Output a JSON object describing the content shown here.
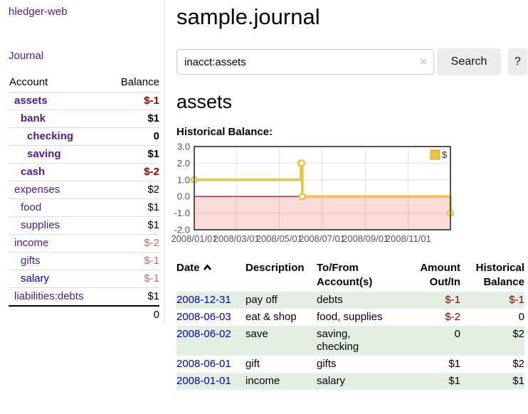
{
  "app": {
    "title": "hledger-web",
    "journal_link": "Journal"
  },
  "sidebar": {
    "account_header": "Account",
    "balance_header": "Balance",
    "rows": [
      {
        "account": "assets",
        "balance": "$-1"
      },
      {
        "account": "bank",
        "balance": "$1"
      },
      {
        "account": "checking",
        "balance": "0"
      },
      {
        "account": "saving",
        "balance": "$1"
      },
      {
        "account": "cash",
        "balance": "$-2"
      },
      {
        "account": "expenses",
        "balance": "$2"
      },
      {
        "account": "food",
        "balance": "$1"
      },
      {
        "account": "supplies",
        "balance": "$1"
      },
      {
        "account": "income",
        "balance": "$-2"
      },
      {
        "account": "gifts",
        "balance": "$-1"
      },
      {
        "account": "salary",
        "balance": "$-1"
      },
      {
        "account": "liabilities:debts",
        "balance": "$1"
      }
    ],
    "total": "0"
  },
  "main": {
    "title": "sample.journal",
    "search": {
      "value": "inacct:assets",
      "clear_icon": "×",
      "button_label": "Search",
      "help_label": "?"
    },
    "heading": "assets",
    "chart_title": "Historical Balance:"
  },
  "chart_data": {
    "type": "line",
    "step": true,
    "title": "Historical Balance:",
    "series": [
      {
        "name": "$",
        "color": "#edc240",
        "points": [
          [
            "2008-01-01",
            1
          ],
          [
            "2008-06-01",
            2
          ],
          [
            "2008-06-02",
            2
          ],
          [
            "2008-06-03",
            0
          ],
          [
            "2008-12-31",
            -1
          ]
        ]
      }
    ],
    "x_range": [
      "2008-01-01",
      "2008-12-31"
    ],
    "y_range": [
      -2.0,
      3.0
    ],
    "y_ticks": [
      {
        "value": 3,
        "label": "3.0"
      },
      {
        "value": 2,
        "label": "2.0"
      },
      {
        "value": 1,
        "label": "1.0"
      },
      {
        "value": 0,
        "label": "0.0"
      },
      {
        "value": -1,
        "label": "-1.0"
      },
      {
        "value": -2,
        "label": "-2.0"
      }
    ],
    "x_ticks": [
      {
        "date": "2008-01-01",
        "label": "2008/01/01"
      },
      {
        "date": "2008-03-01",
        "label": "2008/03/01"
      },
      {
        "date": "2008-05-01",
        "label": "2008/05/01"
      },
      {
        "date": "2008-07-01",
        "label": "2008/07/01"
      },
      {
        "date": "2008-09-01",
        "label": "2008/09/01"
      },
      {
        "date": "2008-11-01",
        "label": "2008/11/01"
      }
    ],
    "grid": true,
    "legend_position": "top-right",
    "legend": [
      "$"
    ],
    "negative_region_color": "#fbdada",
    "zero_line_color": "#8b0000",
    "border_color": "#545454",
    "tick_text_color": "#545454"
  },
  "register": {
    "headers": {
      "date": "Date",
      "description": "Description",
      "accounts": "To/From Account(s)",
      "amount": "Amount Out/In",
      "balance": "Historical Balance"
    },
    "sort_icon": "chevron-up",
    "rows": [
      {
        "date": "2008-12-31",
        "description": "pay off",
        "accounts": "debts",
        "amount": "$-1",
        "balance": "$-1"
      },
      {
        "date": "2008-06-03",
        "description": "eat & shop",
        "accounts": "food, supplies",
        "amount": "$-2",
        "balance": "0"
      },
      {
        "date": "2008-06-02",
        "description": "save",
        "accounts": "saving,\nchecking",
        "amount": "0",
        "balance": "$2"
      },
      {
        "date": "2008-06-01",
        "description": "gift",
        "accounts": "gifts",
        "amount": "$1",
        "balance": "$2"
      },
      {
        "date": "2008-01-01",
        "description": "income",
        "accounts": "salary",
        "amount": "$1",
        "balance": "$1"
      }
    ]
  }
}
